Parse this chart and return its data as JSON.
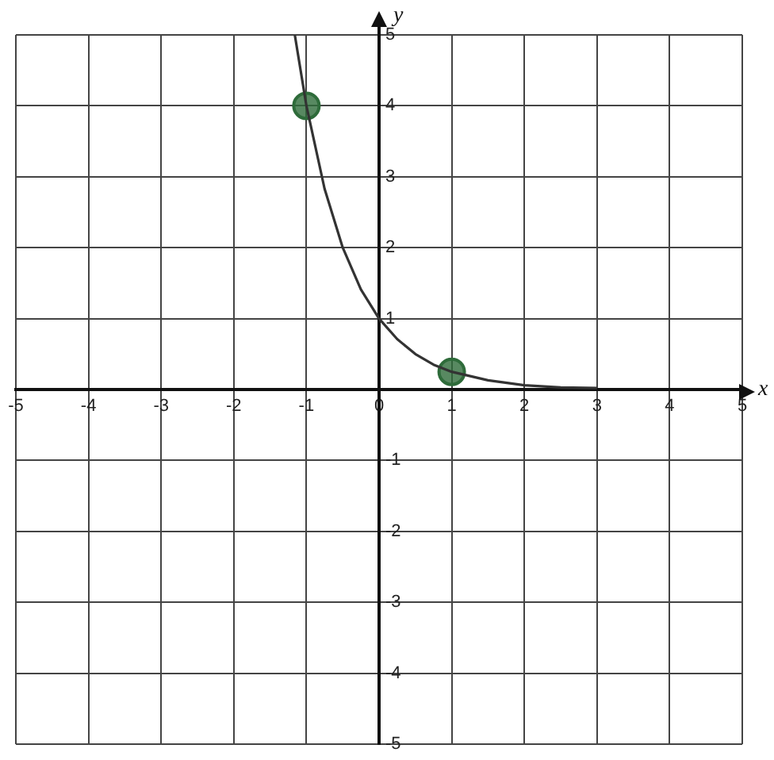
{
  "chart_data": {
    "type": "line",
    "xlabel": "x",
    "ylabel": "y",
    "xlim": [
      -5,
      5
    ],
    "ylim": [
      -5,
      5
    ],
    "xticks": [
      -5,
      -4,
      -3,
      -2,
      -1,
      0,
      1,
      2,
      3,
      4,
      5
    ],
    "yticks": [
      -5,
      -4,
      -3,
      -2,
      -1,
      {
        "value": 0,
        "label": null
      },
      1,
      2,
      3,
      4,
      5
    ],
    "grid": true,
    "series": [
      {
        "color": "#333333",
        "marker": "none",
        "x": [
          -1.16,
          -1,
          -0.75,
          -0.5,
          -0.25,
          0,
          0.25,
          0.5,
          0.75,
          1,
          1.5,
          2,
          2.5,
          3
        ],
        "values": [
          5,
          4,
          2.83,
          2,
          1.41,
          1,
          0.71,
          0.5,
          0.35,
          0.25,
          0.13,
          0.06,
          0.03,
          0.02
        ]
      },
      {
        "type": "scatter",
        "color": "#2e6b3a",
        "marker": "circle",
        "x": [
          -1,
          1
        ],
        "values": [
          4,
          0.25
        ]
      }
    ]
  }
}
